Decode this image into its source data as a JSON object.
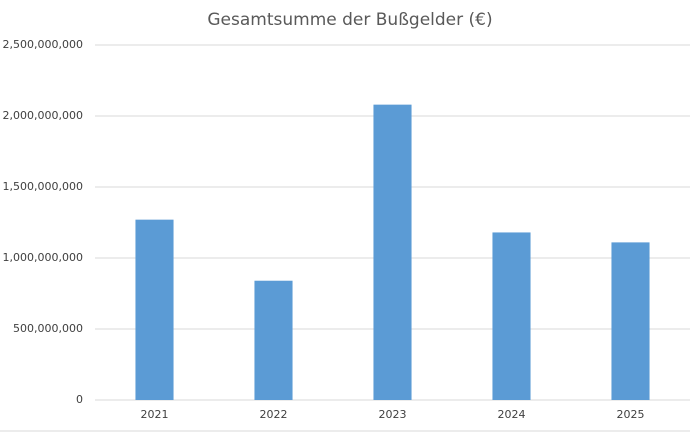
{
  "chart_data": {
    "type": "bar",
    "title": "Gesamtsumme der Bußgelder (€)",
    "categories": [
      "2021",
      "2022",
      "2023",
      "2024",
      "2025"
    ],
    "values": [
      1270000000,
      840000000,
      2080000000,
      1180000000,
      1110000000
    ],
    "color": "#5b9bd5",
    "ylim": [
      0,
      2500000000
    ],
    "yticks": [
      0,
      {
        "value": 500000000,
        "label": "500,000,000"
      },
      {
        "value": 1000000000,
        "label": "1,000,000,000"
      },
      {
        "value": 1500000000,
        "label": "1,500,000,000"
      },
      {
        "value": 2000000000,
        "label": "2,000,000,000"
      },
      {
        "value": 2500000000,
        "label": "2,500,000,000"
      }
    ],
    "grid": true
  }
}
